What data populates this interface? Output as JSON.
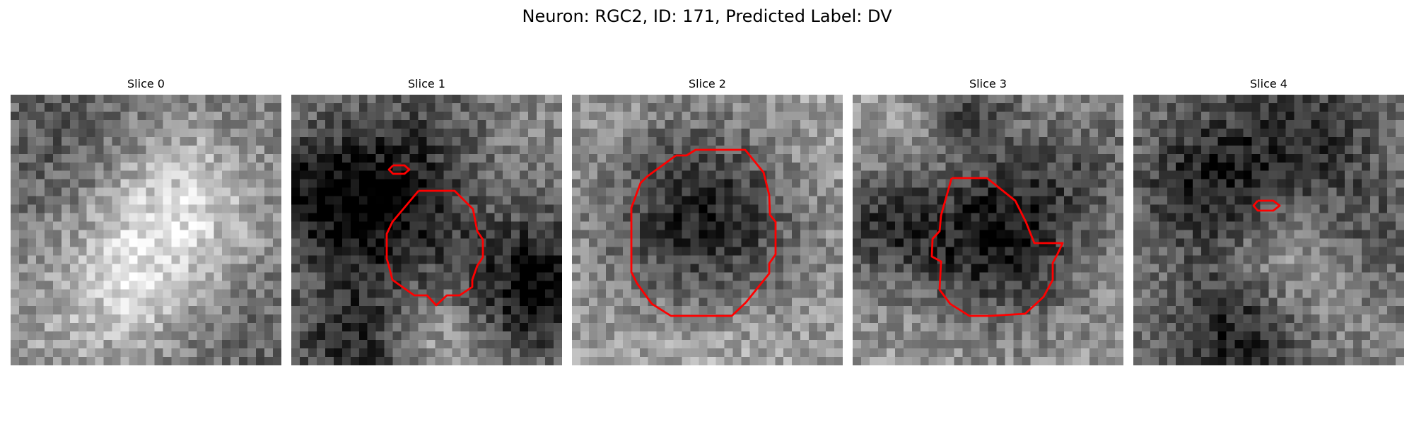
{
  "figure": {
    "title": "Neuron: RGC2, ID: 171, Predicted Label: DV",
    "contour_color": "#ff0000",
    "grid_size": 32
  },
  "panels": [
    {
      "label": "Slice 0"
    },
    {
      "label": "Slice 1"
    },
    {
      "label": "Slice 2"
    },
    {
      "label": "Slice 3"
    },
    {
      "label": "Slice 4"
    }
  ]
}
